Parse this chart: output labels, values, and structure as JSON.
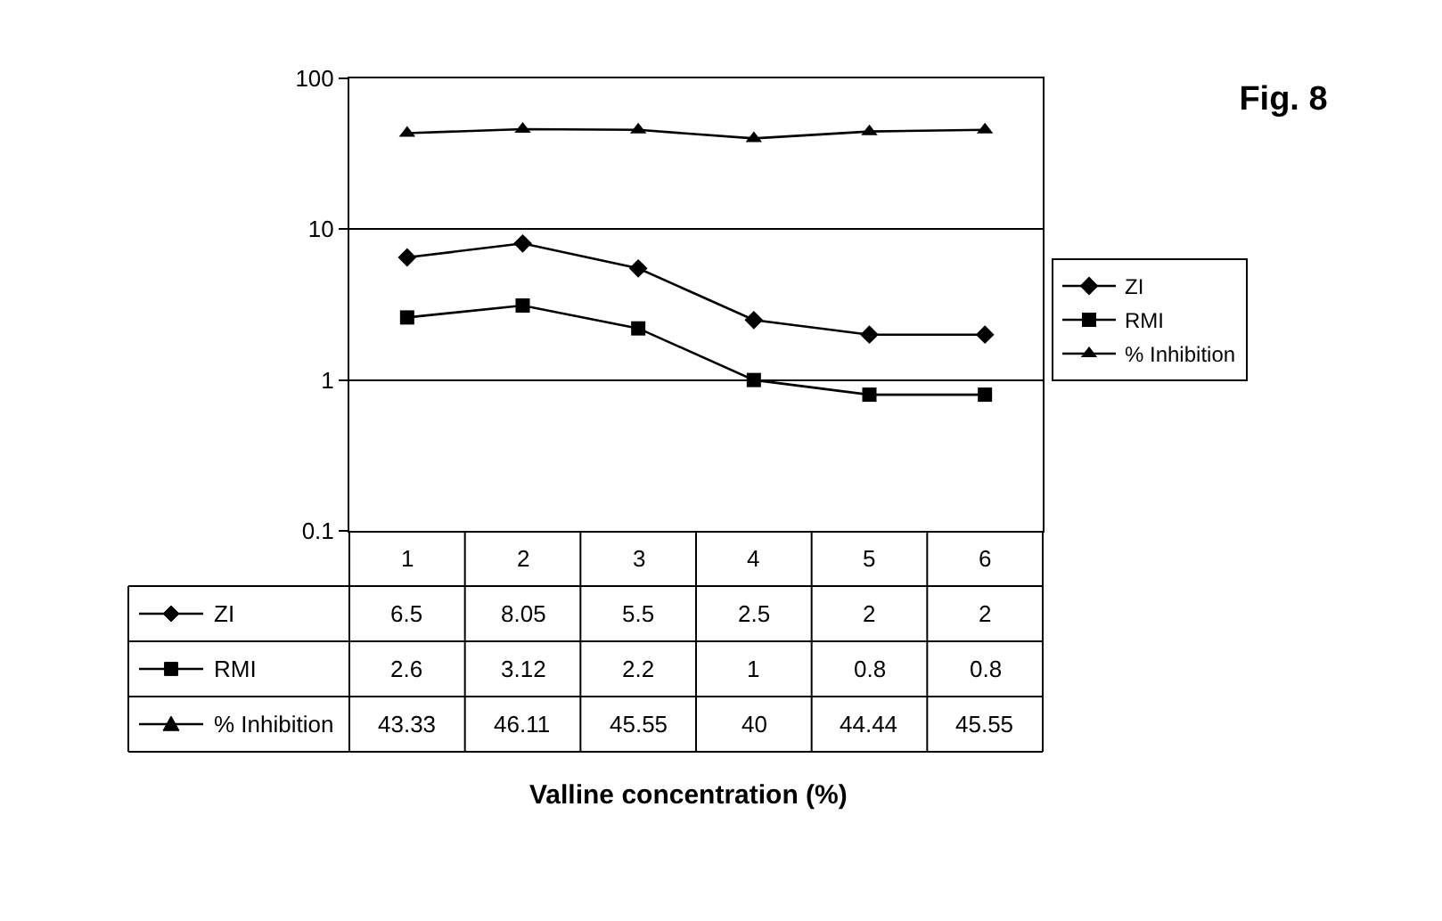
{
  "chart_data": {
    "type": "line",
    "title": "Fig. 8",
    "annotations": [
      "Valline concentration (%)"
    ],
    "categories": [
      "1",
      "2",
      "3",
      "4",
      "5",
      "6"
    ],
    "series": [
      {
        "name": "ZI",
        "color": "#000000",
        "marker": "diamond",
        "values": [
          6.5,
          8.05,
          5.5,
          2.5,
          2,
          2
        ]
      },
      {
        "name": "RMI",
        "color": "#000000",
        "marker": "square",
        "values": [
          2.6,
          3.12,
          2.2,
          1,
          0.8,
          0.8
        ]
      },
      {
        "name": "% Inhibition",
        "color": "#000000",
        "marker": "triangle",
        "values": [
          43.33,
          46.11,
          45.55,
          40,
          44.44,
          45.55
        ]
      }
    ],
    "log": true,
    "ylim": [
      0.1,
      100
    ],
    "yticks": [
      0.1,
      1,
      10,
      100
    ],
    "grid": "y",
    "legend": "right",
    "data_labels": true,
    "line_style": "solid"
  }
}
